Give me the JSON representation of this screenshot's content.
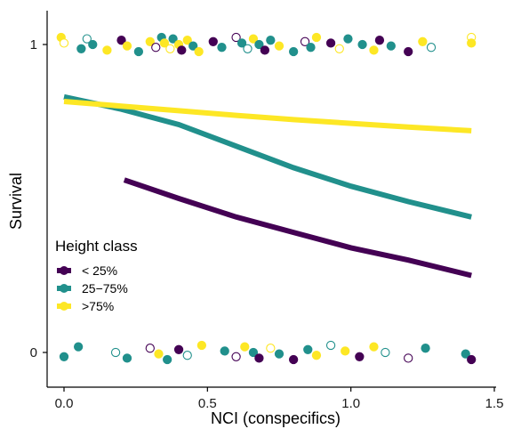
{
  "chart_data": {
    "type": "scatter",
    "xlabel": "NCI (conspecifics)",
    "ylabel": "Survival",
    "xlim": [
      -0.07,
      1.5
    ],
    "ylim": [
      -0.11,
      1.11
    ],
    "xticks": [
      "0.0",
      "0.5",
      "1.0",
      "1.5"
    ],
    "xtick_values": [
      0,
      0.5,
      1.0,
      1.5
    ],
    "yticks": [
      "0",
      "1"
    ],
    "ytick_values": [
      0,
      1
    ],
    "grid": false,
    "legend": {
      "title": "Height class",
      "placement": "bottom-left",
      "entries": [
        "< 25%",
        "25−75%",
        ">75%"
      ]
    },
    "colors": {
      "< 25%": "#440154",
      "25-75%": "#21908c",
      ">75%": "#fde725",
      "axis": "#000000"
    },
    "curves": [
      {
        "name": "< 25%",
        "x": [
          0.21,
          0.4,
          0.6,
          0.8,
          1.0,
          1.2,
          1.42
        ],
        "y": [
          0.56,
          0.5,
          0.44,
          0.39,
          0.34,
          0.3,
          0.25
        ]
      },
      {
        "name": "25−75%",
        "x": [
          0.0,
          0.2,
          0.4,
          0.6,
          0.8,
          1.0,
          1.2,
          1.42
        ],
        "y": [
          0.83,
          0.79,
          0.74,
          0.67,
          0.6,
          0.54,
          0.49,
          0.44
        ]
      },
      {
        "name": ">75%",
        "x": [
          0.0,
          0.2,
          0.4,
          0.6,
          0.8,
          1.0,
          1.2,
          1.42
        ],
        "y": [
          0.815,
          0.8,
          0.785,
          0.77,
          0.756,
          0.744,
          0.732,
          0.72
        ]
      }
    ],
    "points_note": "jittered observations at survival 0 and 1 (filled = one site, open = other)",
    "points": [
      {
        "x": -0.01,
        "y": 1,
        "cls": 2,
        "f": 1
      },
      {
        "x": 0.0,
        "y": 1,
        "cls": 2,
        "f": 0
      },
      {
        "x": 0.06,
        "y": 1,
        "cls": 1,
        "f": 1
      },
      {
        "x": 0.08,
        "y": 1,
        "cls": 1,
        "f": 0
      },
      {
        "x": 0.1,
        "y": 1,
        "cls": 1,
        "f": 1
      },
      {
        "x": 0.15,
        "y": 1,
        "cls": 2,
        "f": 1
      },
      {
        "x": 0.2,
        "y": 1,
        "cls": 0,
        "f": 1
      },
      {
        "x": 0.22,
        "y": 1,
        "cls": 2,
        "f": 1
      },
      {
        "x": 0.26,
        "y": 1,
        "cls": 1,
        "f": 1
      },
      {
        "x": 0.3,
        "y": 1,
        "cls": 2,
        "f": 1
      },
      {
        "x": 0.32,
        "y": 1,
        "cls": 0,
        "f": 0
      },
      {
        "x": 0.34,
        "y": 1,
        "cls": 1,
        "f": 1
      },
      {
        "x": 0.35,
        "y": 1,
        "cls": 2,
        "f": 1
      },
      {
        "x": 0.37,
        "y": 1,
        "cls": 2,
        "f": 0
      },
      {
        "x": 0.38,
        "y": 1,
        "cls": 1,
        "f": 1
      },
      {
        "x": 0.4,
        "y": 1,
        "cls": 2,
        "f": 1
      },
      {
        "x": 0.41,
        "y": 1,
        "cls": 0,
        "f": 1
      },
      {
        "x": 0.43,
        "y": 1,
        "cls": 2,
        "f": 1
      },
      {
        "x": 0.45,
        "y": 1,
        "cls": 1,
        "f": 1
      },
      {
        "x": 0.47,
        "y": 1,
        "cls": 2,
        "f": 1
      },
      {
        "x": 0.52,
        "y": 1,
        "cls": 0,
        "f": 1
      },
      {
        "x": 0.55,
        "y": 1,
        "cls": 1,
        "f": 1
      },
      {
        "x": 0.6,
        "y": 1,
        "cls": 0,
        "f": 0
      },
      {
        "x": 0.62,
        "y": 1,
        "cls": 1,
        "f": 1
      },
      {
        "x": 0.64,
        "y": 1,
        "cls": 1,
        "f": 0
      },
      {
        "x": 0.66,
        "y": 1,
        "cls": 2,
        "f": 1
      },
      {
        "x": 0.68,
        "y": 1,
        "cls": 1,
        "f": 1
      },
      {
        "x": 0.7,
        "y": 1,
        "cls": 0,
        "f": 1
      },
      {
        "x": 0.72,
        "y": 1,
        "cls": 1,
        "f": 1
      },
      {
        "x": 0.75,
        "y": 1,
        "cls": 2,
        "f": 1
      },
      {
        "x": 0.8,
        "y": 1,
        "cls": 1,
        "f": 1
      },
      {
        "x": 0.84,
        "y": 1,
        "cls": 0,
        "f": 0
      },
      {
        "x": 0.86,
        "y": 1,
        "cls": 1,
        "f": 1
      },
      {
        "x": 0.88,
        "y": 1,
        "cls": 2,
        "f": 1
      },
      {
        "x": 0.93,
        "y": 1,
        "cls": 0,
        "f": 1
      },
      {
        "x": 0.96,
        "y": 1,
        "cls": 2,
        "f": 0
      },
      {
        "x": 0.99,
        "y": 1,
        "cls": 1,
        "f": 1
      },
      {
        "x": 1.04,
        "y": 1,
        "cls": 1,
        "f": 1
      },
      {
        "x": 1.08,
        "y": 1,
        "cls": 2,
        "f": 1
      },
      {
        "x": 1.1,
        "y": 1,
        "cls": 0,
        "f": 1
      },
      {
        "x": 1.14,
        "y": 1,
        "cls": 1,
        "f": 1
      },
      {
        "x": 1.2,
        "y": 1,
        "cls": 0,
        "f": 1
      },
      {
        "x": 1.25,
        "y": 1,
        "cls": 2,
        "f": 1
      },
      {
        "x": 1.28,
        "y": 1,
        "cls": 1,
        "f": 0
      },
      {
        "x": 1.42,
        "y": 1,
        "cls": 2,
        "f": 0
      },
      {
        "x": 1.42,
        "y": 1,
        "cls": 2,
        "f": 1
      },
      {
        "x": 0.0,
        "y": 0,
        "cls": 1,
        "f": 1
      },
      {
        "x": 0.05,
        "y": 0,
        "cls": 1,
        "f": 1
      },
      {
        "x": 0.18,
        "y": 0,
        "cls": 1,
        "f": 0
      },
      {
        "x": 0.22,
        "y": 0,
        "cls": 1,
        "f": 1
      },
      {
        "x": 0.3,
        "y": 0,
        "cls": 0,
        "f": 0
      },
      {
        "x": 0.33,
        "y": 0,
        "cls": 2,
        "f": 1
      },
      {
        "x": 0.36,
        "y": 0,
        "cls": 1,
        "f": 1
      },
      {
        "x": 0.4,
        "y": 0,
        "cls": 0,
        "f": 1
      },
      {
        "x": 0.43,
        "y": 0,
        "cls": 1,
        "f": 0
      },
      {
        "x": 0.48,
        "y": 0,
        "cls": 2,
        "f": 1
      },
      {
        "x": 0.56,
        "y": 0,
        "cls": 1,
        "f": 1
      },
      {
        "x": 0.6,
        "y": 0,
        "cls": 0,
        "f": 0
      },
      {
        "x": 0.63,
        "y": 0,
        "cls": 2,
        "f": 1
      },
      {
        "x": 0.66,
        "y": 0,
        "cls": 1,
        "f": 1
      },
      {
        "x": 0.68,
        "y": 0,
        "cls": 0,
        "f": 1
      },
      {
        "x": 0.72,
        "y": 0,
        "cls": 2,
        "f": 0
      },
      {
        "x": 0.75,
        "y": 0,
        "cls": 1,
        "f": 1
      },
      {
        "x": 0.8,
        "y": 0,
        "cls": 0,
        "f": 1
      },
      {
        "x": 0.85,
        "y": 0,
        "cls": 1,
        "f": 1
      },
      {
        "x": 0.88,
        "y": 0,
        "cls": 2,
        "f": 1
      },
      {
        "x": 0.93,
        "y": 0,
        "cls": 1,
        "f": 0
      },
      {
        "x": 0.98,
        "y": 0,
        "cls": 2,
        "f": 1
      },
      {
        "x": 1.03,
        "y": 0,
        "cls": 0,
        "f": 1
      },
      {
        "x": 1.08,
        "y": 0,
        "cls": 2,
        "f": 1
      },
      {
        "x": 1.12,
        "y": 0,
        "cls": 1,
        "f": 0
      },
      {
        "x": 1.2,
        "y": 0,
        "cls": 0,
        "f": 0
      },
      {
        "x": 1.26,
        "y": 0,
        "cls": 1,
        "f": 1
      },
      {
        "x": 1.4,
        "y": 0,
        "cls": 1,
        "f": 1
      },
      {
        "x": 1.42,
        "y": 0,
        "cls": 0,
        "f": 1
      }
    ]
  }
}
